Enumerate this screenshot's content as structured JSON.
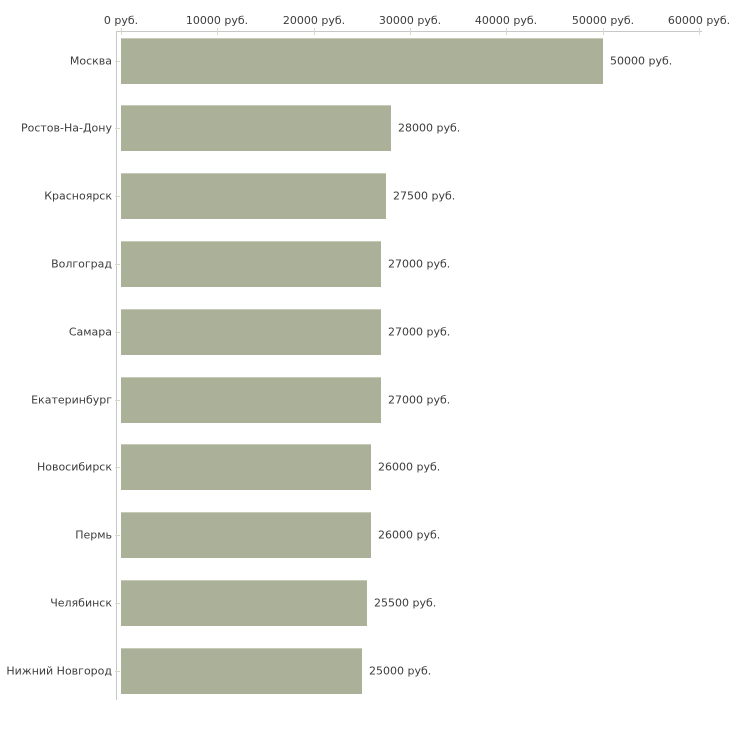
{
  "chart_data": {
    "type": "bar",
    "orientation": "horizontal",
    "title": "",
    "xlabel": "",
    "ylabel": "",
    "unit": "руб.",
    "xlim": [
      0,
      60000
    ],
    "x_ticks": [
      0,
      10000,
      20000,
      30000,
      40000,
      50000,
      60000
    ],
    "x_tick_labels": [
      "0 руб.",
      "10000 руб.",
      "20000 руб.",
      "30000 руб.",
      "40000 руб.",
      "50000 руб.",
      "60000 руб."
    ],
    "categories": [
      "Москва",
      "Ростов-На-Дону",
      "Красноярск",
      "Волгоград",
      "Самара",
      "Екатеринбург",
      "Новосибирск",
      "Пермь",
      "Челябинск",
      "Нижний Новгород"
    ],
    "values": [
      50000,
      28000,
      27500,
      27000,
      27000,
      27000,
      26000,
      26000,
      25500,
      25000
    ],
    "value_labels": [
      "50000 руб.",
      "28000 руб.",
      "27500 руб.",
      "27000 руб.",
      "27000 руб.",
      "27000 руб.",
      "26000 руб.",
      "26000 руб.",
      "25500 руб.",
      "25000 руб."
    ],
    "grid": false,
    "legend": "none",
    "colors": {
      "bar_fill": "#abb198",
      "bar_top_edge": "#c6cbb7",
      "axis_line": "#c8c8c8",
      "tick_mark": "#d9d9c4",
      "text": "#3d3d3d",
      "background": "#ffffff"
    }
  }
}
